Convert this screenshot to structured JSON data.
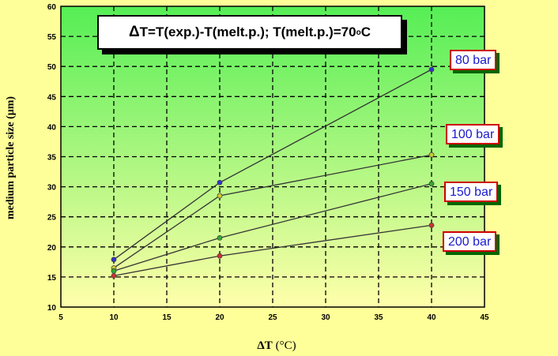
{
  "chart_data": {
    "type": "line",
    "title": "",
    "annotation": {
      "delta_symbol": "Δ",
      "text_before_sup": "T=T(exp.)-T(melt.p.); T(melt.p.)=70",
      "sup": "o",
      "text_after_sup": "C"
    },
    "xlabel": {
      "symbol": "ΔT",
      "unit": " (°C)"
    },
    "ylabel": "medium particle size (μm)",
    "xlim": [
      5,
      45
    ],
    "ylim": [
      10,
      60
    ],
    "xticks": [
      5,
      10,
      15,
      20,
      25,
      30,
      35,
      40,
      45
    ],
    "yticks": [
      10,
      15,
      20,
      25,
      30,
      35,
      40,
      45,
      50,
      55,
      60
    ],
    "grid": true,
    "series": [
      {
        "name": "80 bar",
        "x": [
          10,
          20,
          40
        ],
        "y": [
          17.9,
          30.7,
          49.5
        ],
        "color": "#3333cc"
      },
      {
        "name": "100 bar",
        "x": [
          10,
          20,
          40
        ],
        "y": [
          16.5,
          28.5,
          35.3
        ],
        "color": "#cccc33"
      },
      {
        "name": "150 bar",
        "x": [
          10,
          20,
          40
        ],
        "y": [
          16.0,
          21.5,
          30.5
        ],
        "color": "#33aa33"
      },
      {
        "name": "200 bar",
        "x": [
          10,
          20,
          40
        ],
        "y": [
          15.2,
          18.5,
          23.6
        ],
        "color": "#cc3333"
      }
    ]
  },
  "colors": {
    "page_background": "#ffff99",
    "plot_gradient_top": "#55ee55",
    "plot_gradient_bottom": "#ffffaa",
    "label_border": "#cc0000",
    "label_text": "#1a1acc"
  }
}
